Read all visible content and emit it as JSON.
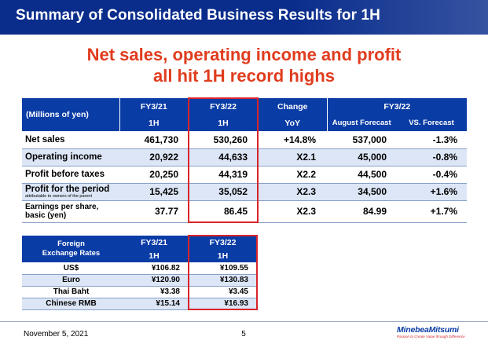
{
  "header": {
    "title": "Summary of Consolidated Business Results for 1H"
  },
  "headline": {
    "line1": "Net sales, operating income and profit",
    "line2": "all hit 1H record highs"
  },
  "results": {
    "units_label": "(Millions of yen)",
    "col_fy21": "FY3/21",
    "col_fy22": "FY3/22",
    "col_change": "Change",
    "col_fy22_group": "FY3/22",
    "sub_1h_a": "1H",
    "sub_1h_b": "1H",
    "sub_yoy": "YoY",
    "sub_forecast": "August Forecast",
    "sub_vs": "VS. Forecast",
    "rows": [
      {
        "label": "Net sales",
        "sublabel": "",
        "fy21": "461,730",
        "fy22": "530,260",
        "change": "+14.8%",
        "forecast": "537,000",
        "vs": "-1.3%"
      },
      {
        "label": "Operating income",
        "sublabel": "",
        "fy21": "20,922",
        "fy22": "44,633",
        "change": "X2.1",
        "forecast": "45,000",
        "vs": "-0.8%"
      },
      {
        "label": "Profit before taxes",
        "sublabel": "",
        "fy21": "20,250",
        "fy22": "44,319",
        "change": "X2.2",
        "forecast": "44,500",
        "vs": "-0.4%"
      },
      {
        "label": "Profit for the period",
        "sublabel": "attributable to owners of the parent",
        "fy21": "15,425",
        "fy22": "35,052",
        "change": "X2.3",
        "forecast": "34,500",
        "vs": "+1.6%"
      },
      {
        "label": "Earnings per share,",
        "sublabel": "basic (yen)",
        "fy21": "37.77",
        "fy22": "86.45",
        "change": "X2.3",
        "forecast": "84.99",
        "vs": "+1.7%"
      }
    ]
  },
  "fx": {
    "label_line1": "Foreign",
    "label_line2": "Exchange Rates",
    "col_fy21": "FY3/21",
    "col_fy22": "FY3/22",
    "sub_1h_a": "1H",
    "sub_1h_b": "1H",
    "rows": [
      {
        "currency": "US$",
        "fy21": "¥106.82",
        "fy22": "¥109.55"
      },
      {
        "currency": "Euro",
        "fy21": "¥120.90",
        "fy22": "¥130.83"
      },
      {
        "currency": "Thai Baht",
        "fy21": "¥3.38",
        "fy22": "¥3.45"
      },
      {
        "currency": "Chinese RMB",
        "fy21": "¥15.14",
        "fy22": "¥16.93"
      }
    ]
  },
  "footer": {
    "date": "November 5, 2021",
    "page": "5",
    "logo_name": "MinebeaMitsumi",
    "logo_tagline": "Passion to Create Value through Difference"
  },
  "colors": {
    "brand_blue": "#0a2d8c",
    "header_blue": "#0a3ca6",
    "headline_red": "#e03c1e",
    "highlight_red": "#d8252a",
    "row_shade": "#dce6f6"
  }
}
